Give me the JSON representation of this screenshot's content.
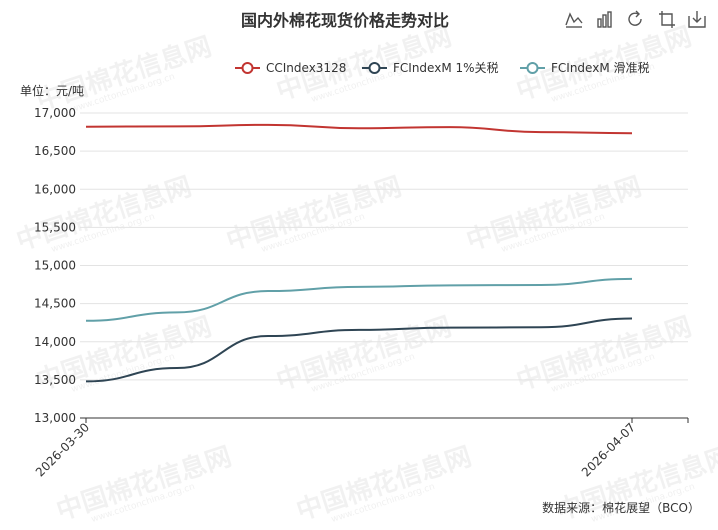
{
  "chart_data": {
    "type": "line",
    "title": "国内外棉花现货价格走势对比",
    "unit_label": "单位：元/吨",
    "source": "数据来源：棉花展望（BCO）",
    "x_tick_labels": [
      "2026-03-30",
      "2026-04-07"
    ],
    "x": [
      "2026-03-30",
      "2026-03-31",
      "2026-04-01",
      "2026-04-02",
      "2026-04-03",
      "2026-04-06",
      "2026-04-07"
    ],
    "ylim": [
      13000,
      17000
    ],
    "yticks": [
      13000,
      13500,
      14000,
      14500,
      15000,
      15500,
      16000,
      16500,
      17000
    ],
    "grid": true,
    "legend_position": "top-right",
    "series": [
      {
        "name": "CCIndex3128",
        "color": "#c23531",
        "values": [
          16820,
          16825,
          16845,
          16800,
          16815,
          16750,
          16735
        ]
      },
      {
        "name": "FCIndexM 1%关税",
        "color": "#2f4554",
        "values": [
          13480,
          13655,
          14075,
          14155,
          14185,
          14190,
          14305
        ]
      },
      {
        "name": "FCIndexM 滑准税",
        "color": "#61a0a8",
        "values": [
          14275,
          14385,
          14665,
          14720,
          14740,
          14745,
          14825
        ]
      }
    ]
  },
  "toolbar": {
    "icons": [
      "line-chart-icon",
      "bar-chart-icon",
      "refresh-icon",
      "restore-icon",
      "save-image-icon"
    ]
  },
  "watermark": {
    "text": "中国棉花信息网",
    "url_text": "www.cottonchina.org.cn"
  }
}
